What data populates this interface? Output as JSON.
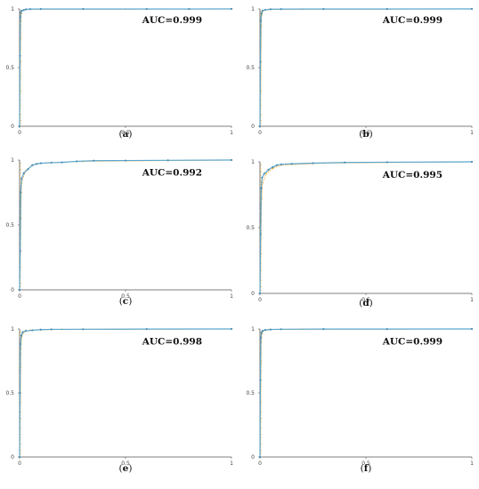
{
  "chart_data": [
    {
      "type": "line",
      "caption": "a",
      "annotation": "AUC=0.999",
      "x_ticks": [
        "0",
        "0.5",
        "1"
      ],
      "y_ticks": [
        "0",
        "0.5",
        "1"
      ],
      "xlim": [
        0,
        1
      ],
      "ylim": [
        0,
        1
      ],
      "grid": false,
      "series": [
        {
          "values": [
            [
              0,
              0
            ],
            [
              0.002,
              0.6
            ],
            [
              0.004,
              0.93
            ],
            [
              0.006,
              0.97
            ],
            [
              0.01,
              0.985
            ],
            [
              0.02,
              0.99
            ],
            [
              0.03,
              0.996
            ],
            [
              0.05,
              0.998
            ],
            [
              0.1,
              0.999
            ],
            [
              0.3,
              0.999
            ],
            [
              0.6,
              0.999
            ],
            [
              0.8,
              0.999
            ],
            [
              1,
              1
            ]
          ]
        },
        {
          "values": [
            [
              0,
              0
            ],
            [
              0.002,
              0.1
            ],
            [
              0.003,
              0.3
            ],
            [
              0.004,
              0.55
            ],
            [
              0.005,
              0.75
            ],
            [
              0.006,
              0.9
            ],
            [
              0.008,
              0.96
            ],
            [
              0.012,
              0.985
            ],
            [
              0.03,
              0.995
            ],
            [
              0.1,
              0.998
            ],
            [
              0.5,
              0.999
            ],
            [
              1,
              1
            ]
          ]
        }
      ]
    },
    {
      "type": "line",
      "caption": "b",
      "annotation": "AUC=0.999",
      "x_ticks": [
        "0",
        "0.5",
        "1"
      ],
      "y_ticks": [
        "0",
        "0.5",
        "1"
      ],
      "xlim": [
        0,
        1
      ],
      "ylim": [
        0,
        1
      ],
      "grid": false,
      "series": [
        {
          "values": [
            [
              0,
              0
            ],
            [
              0.002,
              0.55
            ],
            [
              0.004,
              0.9
            ],
            [
              0.007,
              0.96
            ],
            [
              0.012,
              0.985
            ],
            [
              0.025,
              0.992
            ],
            [
              0.05,
              0.997
            ],
            [
              0.1,
              0.998
            ],
            [
              0.3,
              0.999
            ],
            [
              0.6,
              0.999
            ],
            [
              1,
              1
            ]
          ]
        },
        {
          "values": [
            [
              0,
              0
            ],
            [
              0.002,
              0.1
            ],
            [
              0.003,
              0.3
            ],
            [
              0.004,
              0.5
            ],
            [
              0.005,
              0.7
            ],
            [
              0.006,
              0.85
            ],
            [
              0.008,
              0.95
            ],
            [
              0.015,
              0.985
            ],
            [
              0.04,
              0.995
            ],
            [
              0.2,
              0.998
            ],
            [
              1,
              1
            ]
          ]
        }
      ]
    },
    {
      "type": "line",
      "caption": "c",
      "annotation": "AUC=0.992",
      "x_ticks": [
        "0",
        "0.5",
        "1"
      ],
      "y_ticks": [
        "0",
        "0.5",
        "1"
      ],
      "xlim": [
        0,
        1
      ],
      "ylim": [
        0,
        1
      ],
      "grid": false,
      "series": [
        {
          "values": [
            [
              0,
              0
            ],
            [
              0.003,
              0.3
            ],
            [
              0.005,
              0.75
            ],
            [
              0.01,
              0.86
            ],
            [
              0.02,
              0.9
            ],
            [
              0.04,
              0.93
            ],
            [
              0.06,
              0.96
            ],
            [
              0.08,
              0.97
            ],
            [
              0.1,
              0.975
            ],
            [
              0.15,
              0.98
            ],
            [
              0.2,
              0.982
            ],
            [
              0.27,
              0.99
            ],
            [
              0.35,
              0.995
            ],
            [
              0.5,
              0.996
            ],
            [
              0.7,
              0.998
            ],
            [
              1,
              1
            ]
          ]
        },
        {
          "values": [
            [
              0,
              0
            ],
            [
              0.002,
              0.1
            ],
            [
              0.004,
              0.3
            ],
            [
              0.006,
              0.55
            ],
            [
              0.008,
              0.75
            ],
            [
              0.012,
              0.85
            ],
            [
              0.03,
              0.92
            ],
            [
              0.06,
              0.96
            ],
            [
              0.1,
              0.975
            ],
            [
              0.3,
              0.99
            ],
            [
              1,
              1
            ]
          ]
        }
      ]
    },
    {
      "type": "line",
      "caption": "d",
      "annotation": "AUC=0.995",
      "x_ticks": [
        "0",
        "0.5",
        "1"
      ],
      "y_ticks": [
        "0",
        "0.5",
        "1"
      ],
      "xlim": [
        0,
        1
      ],
      "ylim": [
        0,
        1
      ],
      "grid": false,
      "series": [
        {
          "values": [
            [
              0,
              0
            ],
            [
              0.003,
              0.45
            ],
            [
              0.006,
              0.8
            ],
            [
              0.01,
              0.88
            ],
            [
              0.02,
              0.91
            ],
            [
              0.04,
              0.94
            ],
            [
              0.06,
              0.96
            ],
            [
              0.08,
              0.975
            ],
            [
              0.1,
              0.98
            ],
            [
              0.15,
              0.985
            ],
            [
              0.25,
              0.99
            ],
            [
              0.4,
              0.995
            ],
            [
              0.6,
              0.997
            ],
            [
              1,
              1
            ]
          ]
        },
        {
          "values": [
            [
              0,
              0
            ],
            [
              0.002,
              0.1
            ],
            [
              0.004,
              0.3
            ],
            [
              0.006,
              0.55
            ],
            [
              0.008,
              0.72
            ],
            [
              0.012,
              0.84
            ],
            [
              0.03,
              0.91
            ],
            [
              0.06,
              0.95
            ],
            [
              0.1,
              0.975
            ],
            [
              0.3,
              0.99
            ],
            [
              1,
              1
            ]
          ]
        }
      ]
    },
    {
      "type": "line",
      "caption": "e",
      "annotation": "AUC=0.998",
      "x_ticks": [
        "0",
        "0.5",
        "1"
      ],
      "y_ticks": [
        "0",
        "0.5",
        "1"
      ],
      "xlim": [
        0,
        1
      ],
      "ylim": [
        0,
        1
      ],
      "grid": false,
      "series": [
        {
          "values": [
            [
              0,
              0
            ],
            [
              0.002,
              0.5
            ],
            [
              0.004,
              0.88
            ],
            [
              0.008,
              0.95
            ],
            [
              0.015,
              0.975
            ],
            [
              0.03,
              0.985
            ],
            [
              0.06,
              0.99
            ],
            [
              0.1,
              0.995
            ],
            [
              0.15,
              0.997
            ],
            [
              0.3,
              0.998
            ],
            [
              0.6,
              0.999
            ],
            [
              1,
              1
            ]
          ]
        },
        {
          "values": [
            [
              0,
              0
            ],
            [
              0.002,
              0.1
            ],
            [
              0.003,
              0.3
            ],
            [
              0.004,
              0.5
            ],
            [
              0.005,
              0.7
            ],
            [
              0.006,
              0.85
            ],
            [
              0.01,
              0.94
            ],
            [
              0.02,
              0.975
            ],
            [
              0.05,
              0.99
            ],
            [
              0.2,
              0.997
            ],
            [
              1,
              1
            ]
          ]
        }
      ]
    },
    {
      "type": "line",
      "caption": "f",
      "annotation": "AUC=0.999",
      "x_ticks": [
        "0",
        "0.5",
        "1"
      ],
      "y_ticks": [
        "0",
        "0.5",
        "1"
      ],
      "xlim": [
        0,
        1
      ],
      "ylim": [
        0,
        1
      ],
      "grid": false,
      "series": [
        {
          "values": [
            [
              0,
              0
            ],
            [
              0.002,
              0.6
            ],
            [
              0.004,
              0.93
            ],
            [
              0.007,
              0.97
            ],
            [
              0.012,
              0.985
            ],
            [
              0.025,
              0.992
            ],
            [
              0.05,
              0.996
            ],
            [
              0.1,
              0.998
            ],
            [
              0.3,
              0.999
            ],
            [
              0.6,
              0.999
            ],
            [
              1,
              1
            ]
          ]
        },
        {
          "values": [
            [
              0,
              0
            ],
            [
              0.002,
              0.1
            ],
            [
              0.003,
              0.3
            ],
            [
              0.004,
              0.55
            ],
            [
              0.005,
              0.75
            ],
            [
              0.006,
              0.9
            ],
            [
              0.009,
              0.96
            ],
            [
              0.015,
              0.985
            ],
            [
              0.04,
              0.995
            ],
            [
              0.2,
              0.998
            ],
            [
              1,
              1
            ]
          ]
        }
      ]
    }
  ],
  "colors": {
    "roc_line": "#5ba6cc",
    "roc_points": "#4a90b8",
    "orange_points": "#f0a830",
    "axis": "#555555"
  }
}
